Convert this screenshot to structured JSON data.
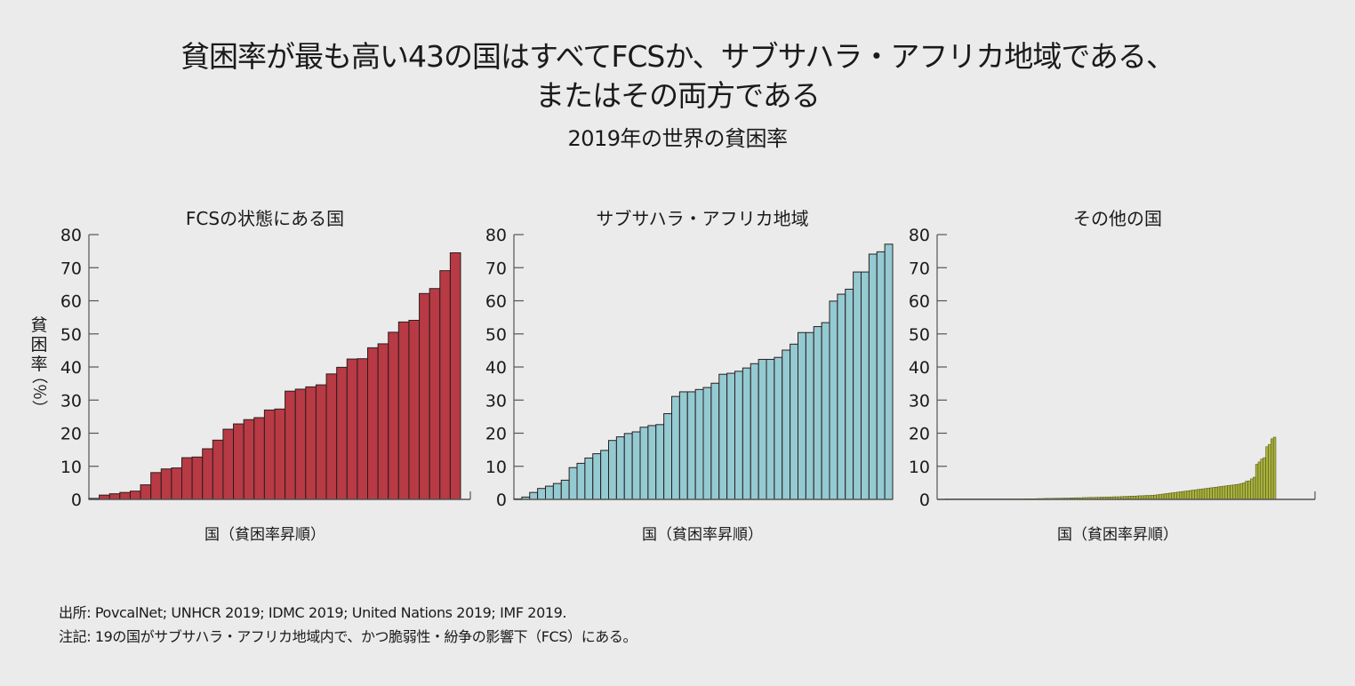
{
  "title_line1": "貧困率が最も高い43の国はすべてFCSか、サブサハラ・アフリカ地域である、",
  "title_line2": "またはその両方である",
  "subtitle": "2019年の世界の貧困率",
  "notes": {
    "source": "出所: PovcalNet; UNHCR 2019; IDMC 2019; United Nations 2019; IMF 2019.",
    "note": "注記: 19の国がサブサハラ・アフリカ地域内で、かつ脆弱性・紛争の影響下（FCS）にある。"
  },
  "chart_data": [
    {
      "type": "bar",
      "title": "FCSの状態にある国",
      "xlabel": "国（貧困率昇順）",
      "ylabel": "貧困率（％）",
      "ylim": [
        0,
        80
      ],
      "yticks": [
        0,
        10,
        20,
        30,
        40,
        50,
        60,
        70,
        80
      ],
      "color": "#b83a44",
      "values": [
        0.3,
        1.3,
        1.7,
        2.1,
        2.5,
        4.4,
        8.1,
        9.2,
        9.5,
        12.6,
        12.8,
        15.3,
        17.9,
        21.2,
        22.8,
        24.1,
        24.7,
        27.0,
        27.3,
        32.7,
        33.3,
        34.0,
        34.6,
        37.9,
        39.9,
        42.4,
        42.5,
        45.8,
        47.0,
        50.5,
        53.6,
        54.1,
        62.2,
        63.7,
        69.1,
        74.5
      ]
    },
    {
      "type": "bar",
      "title": "サブサハラ・アフリカ地域",
      "xlabel": "国（貧困率昇順）",
      "ylabel": "",
      "ylim": [
        0,
        80
      ],
      "yticks": [
        0,
        10,
        20,
        30,
        40,
        50,
        60,
        70,
        80
      ],
      "color": "#94cad2",
      "values": [
        0.1,
        0.7,
        2.1,
        3.3,
        4.0,
        4.8,
        5.8,
        9.6,
        10.9,
        12.5,
        13.8,
        14.8,
        17.8,
        18.9,
        19.9,
        20.4,
        21.8,
        22.3,
        22.6,
        25.9,
        31.1,
        32.5,
        32.5,
        33.2,
        33.8,
        35.1,
        37.8,
        38.1,
        38.7,
        39.7,
        41.0,
        42.3,
        42.3,
        42.9,
        45.1,
        46.9,
        50.4,
        50.4,
        52.2,
        53.4,
        59.9,
        62.0,
        63.5,
        68.7,
        68.7,
        74.1,
        74.8,
        77.1
      ]
    },
    {
      "type": "bar",
      "title": "その他の国",
      "xlabel": "国（貧困率昇順）",
      "ylabel": "",
      "ylim": [
        0,
        80
      ],
      "yticks": [
        0,
        10,
        20,
        30,
        40,
        50,
        60,
        70,
        80
      ],
      "color": "#a9b23c",
      "values": [
        0.0,
        0.0,
        0.0,
        0.0,
        0.0,
        0.0,
        0.0,
        0.0,
        0.0,
        0.0,
        0.0,
        0.0,
        0.0,
        0.0,
        0.05,
        0.05,
        0.05,
        0.05,
        0.05,
        0.05,
        0.1,
        0.1,
        0.1,
        0.1,
        0.1,
        0.1,
        0.1,
        0.15,
        0.15,
        0.15,
        0.15,
        0.2,
        0.2,
        0.2,
        0.2,
        0.2,
        0.25,
        0.25,
        0.25,
        0.3,
        0.3,
        0.3,
        0.3,
        0.35,
        0.35,
        0.35,
        0.4,
        0.4,
        0.4,
        0.45,
        0.45,
        0.5,
        0.5,
        0.5,
        0.55,
        0.55,
        0.6,
        0.6,
        0.6,
        0.65,
        0.65,
        0.7,
        0.7,
        0.7,
        0.75,
        0.75,
        0.8,
        0.8,
        0.8,
        0.85,
        0.9,
        0.9,
        0.95,
        1.0,
        1.0,
        1.05,
        1.1,
        1.1,
        1.15,
        1.2,
        1.2,
        1.25,
        1.3,
        1.4,
        1.5,
        1.6,
        1.7,
        1.8,
        1.9,
        2.0,
        2.1,
        2.2,
        2.3,
        2.4,
        2.5,
        2.6,
        2.7,
        2.8,
        2.9,
        3.0,
        3.1,
        3.2,
        3.3,
        3.4,
        3.5,
        3.6,
        3.7,
        3.8,
        3.9,
        4.0,
        4.1,
        4.2,
        4.3,
        4.4,
        4.5,
        4.6,
        4.8,
        5.0,
        5.5,
        5.6,
        6.2,
        6.7,
        10.6,
        11.3,
        12.2,
        12.6,
        15.9,
        16.6,
        18.3,
        18.8
      ]
    }
  ]
}
